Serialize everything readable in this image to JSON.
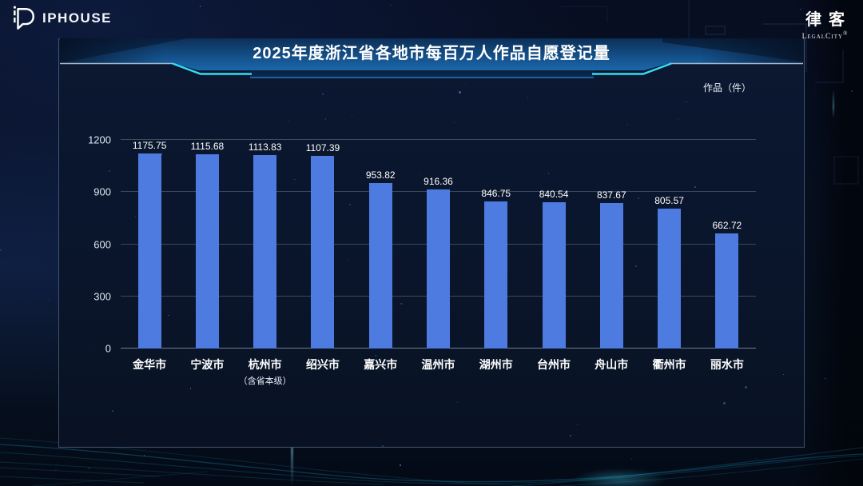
{
  "brand_left": {
    "name": "IPHOUSE"
  },
  "brand_right": {
    "name": "律客",
    "sub": "LegalCity",
    "reg": "®"
  },
  "chart_data": {
    "type": "bar",
    "title": "2025年度浙江省各地市每百万人作品自愿登记量",
    "unit": "作品（件）",
    "categories": [
      "金华市",
      "宁波市",
      "杭州市",
      "绍兴市",
      "嘉兴市",
      "温州市",
      "湖州市",
      "台州市",
      "舟山市",
      "衢州市",
      "丽水市"
    ],
    "category_sublabels": [
      "",
      "",
      "（含省本级）",
      "",
      "",
      "",
      "",
      "",
      "",
      "",
      ""
    ],
    "values": [
      1175.75,
      1115.68,
      1113.83,
      1107.39,
      953.82,
      916.36,
      846.75,
      840.54,
      837.67,
      805.57,
      662.72
    ],
    "xlabel": "",
    "ylabel": "",
    "ylim": [
      0,
      1200
    ],
    "y_ticks": [
      0,
      300,
      600,
      900,
      1200
    ],
    "grid": true,
    "value_labels": true,
    "legend": "none",
    "bar_color": "#4d7bdf",
    "accent_color": "#35dcf5",
    "banner_gradient": [
      "#0d2f58",
      "#1d6cb0"
    ]
  }
}
